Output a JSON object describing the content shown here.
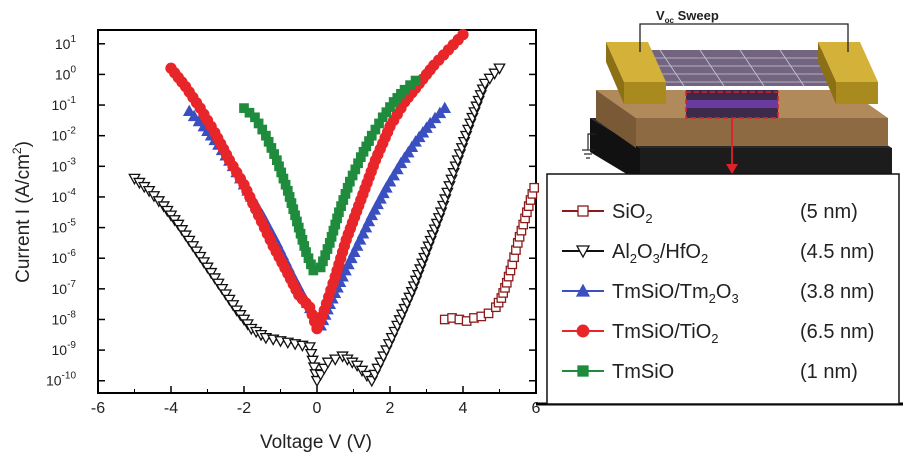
{
  "chart_data": {
    "type": "scatter",
    "xlabel": "Voltage V (V)",
    "ylabel": "Current I (A/cm²)",
    "ylabel_main": "Current I (A/cm",
    "ylabel_sup": "2",
    "ylabel_end": ")",
    "x_ticks": [
      "-6",
      "-4",
      "-2",
      "0",
      "2",
      "4",
      "6"
    ],
    "y_ticks": [
      {
        "base": "10",
        "exp": "1"
      },
      {
        "base": "10",
        "exp": "0"
      },
      {
        "base": "10",
        "exp": "-1"
      },
      {
        "base": "10",
        "exp": "-2"
      },
      {
        "base": "10",
        "exp": "-3"
      },
      {
        "base": "10",
        "exp": "-4"
      },
      {
        "base": "10",
        "exp": "-5"
      },
      {
        "base": "10",
        "exp": "-6"
      },
      {
        "base": "10",
        "exp": "-7"
      },
      {
        "base": "10",
        "exp": "-8"
      },
      {
        "base": "10",
        "exp": "-9"
      },
      {
        "base": "10",
        "exp": "-10"
      }
    ],
    "xlim": [
      -6,
      6
    ],
    "ylim_log10": [
      -10.4,
      1.45
    ],
    "y_scale": "log",
    "grid": false,
    "legend_position": "bottom-right",
    "inset": {
      "label": "V",
      "label_sub": "oc",
      "label_rest": " Sweep",
      "subject": "device cross-section schematic"
    },
    "series": [
      {
        "name": "SiO2",
        "legend_parts": [
          {
            "t": "SiO"
          },
          {
            "t": "2",
            "sub": true
          }
        ],
        "thickness": "(5 nm)",
        "color": "#8b1a1a",
        "marker": "square-open",
        "points": [
          [
            3.5,
            -8
          ],
          [
            3.7,
            -7.95
          ],
          [
            3.9,
            -8
          ],
          [
            4.1,
            -8.05
          ],
          [
            4.3,
            -7.95
          ],
          [
            4.5,
            -7.9
          ],
          [
            4.7,
            -7.8
          ],
          [
            4.9,
            -7.6
          ],
          [
            5.05,
            -7.3
          ],
          [
            5.2,
            -6.8
          ],
          [
            5.35,
            -6.2
          ],
          [
            5.5,
            -5.5
          ],
          [
            5.65,
            -4.9
          ],
          [
            5.8,
            -4.3
          ],
          [
            5.95,
            -3.7
          ]
        ]
      },
      {
        "name": "Al2O3/HfO2",
        "legend_parts": [
          {
            "t": "Al"
          },
          {
            "t": "2",
            "sub": true
          },
          {
            "t": "O"
          },
          {
            "t": "3",
            "sub": true
          },
          {
            "t": "/HfO"
          },
          {
            "t": "2",
            "sub": true
          }
        ],
        "thickness": "(4.5 nm)",
        "color": "#111111",
        "marker": "triangle-down-open",
        "points": [
          [
            -5,
            -3.4
          ],
          [
            -4.6,
            -3.8
          ],
          [
            -4.2,
            -4.3
          ],
          [
            -3.8,
            -4.9
          ],
          [
            -3.4,
            -5.6
          ],
          [
            -3,
            -6.3
          ],
          [
            -2.6,
            -7
          ],
          [
            -2.2,
            -7.7
          ],
          [
            -1.8,
            -8.3
          ],
          [
            -1.4,
            -8.6
          ],
          [
            -1,
            -8.7
          ],
          [
            -0.6,
            -8.8
          ],
          [
            -0.2,
            -8.9
          ],
          [
            0,
            -10
          ],
          [
            0.3,
            -9.4
          ],
          [
            0.7,
            -9.2
          ],
          [
            1.1,
            -9.5
          ],
          [
            1.5,
            -10
          ],
          [
            1.9,
            -9
          ],
          [
            2.2,
            -8.2
          ],
          [
            2.6,
            -7.1
          ],
          [
            3,
            -5.8
          ],
          [
            3.4,
            -4.5
          ],
          [
            3.8,
            -3
          ],
          [
            4.2,
            -1.6
          ],
          [
            4.6,
            -0.3
          ],
          [
            5,
            0.2
          ]
        ]
      },
      {
        "name": "TmSiO/Tm2O3",
        "legend_parts": [
          {
            "t": "TmSiO/Tm"
          },
          {
            "t": "2",
            "sub": true
          },
          {
            "t": "O"
          },
          {
            "t": "3",
            "sub": true
          }
        ],
        "thickness": "(3.8 nm)",
        "color": "#3a4fc0",
        "marker": "triangle-up-filled",
        "points": [
          [
            -3.5,
            -1.2
          ],
          [
            -3.1,
            -1.7
          ],
          [
            -2.7,
            -2.3
          ],
          [
            -2.3,
            -3
          ],
          [
            -1.9,
            -3.8
          ],
          [
            -1.5,
            -4.6
          ],
          [
            -1.1,
            -5.5
          ],
          [
            -0.7,
            -6.5
          ],
          [
            -0.35,
            -7.3
          ],
          [
            -0.1,
            -7.8
          ],
          [
            0.1,
            -8.2
          ],
          [
            0.35,
            -7.5
          ],
          [
            0.7,
            -6.6
          ],
          [
            1.1,
            -5.6
          ],
          [
            1.5,
            -4.6
          ],
          [
            1.9,
            -3.7
          ],
          [
            2.3,
            -2.9
          ],
          [
            2.7,
            -2.2
          ],
          [
            3.1,
            -1.6
          ],
          [
            3.5,
            -1.1
          ]
        ]
      },
      {
        "name": "TmSiO/TiO2",
        "legend_parts": [
          {
            "t": "TmSiO/TiO"
          },
          {
            "t": "2",
            "sub": true
          }
        ],
        "thickness": "(6.5 nm)",
        "color": "#e8262a",
        "marker": "circle-filled",
        "points": [
          [
            -4,
            0.2
          ],
          [
            -3.6,
            -0.4
          ],
          [
            -3.2,
            -1.1
          ],
          [
            -2.8,
            -1.9
          ],
          [
            -2.4,
            -2.8
          ],
          [
            -2,
            -3.6
          ],
          [
            -1.6,
            -4.6
          ],
          [
            -1.2,
            -5.6
          ],
          [
            -0.8,
            -6.5
          ],
          [
            -0.5,
            -7.2
          ],
          [
            -0.2,
            -7.6
          ],
          [
            0,
            -8.3
          ],
          [
            0.2,
            -7.7
          ],
          [
            0.5,
            -6.6
          ],
          [
            0.8,
            -5.4
          ],
          [
            1.2,
            -4.1
          ],
          [
            1.6,
            -2.8
          ],
          [
            2,
            -1.7
          ],
          [
            2.4,
            -0.9
          ],
          [
            2.8,
            -0.3
          ],
          [
            3.2,
            0.3
          ],
          [
            3.6,
            0.8
          ],
          [
            4,
            1.3
          ]
        ]
      },
      {
        "name": "TmSiO",
        "legend_parts": [
          {
            "t": "TmSiO"
          }
        ],
        "thickness": "(1 nm)",
        "color": "#1e8c3c",
        "marker": "square-filled",
        "points": [
          [
            -2,
            -1.1
          ],
          [
            -1.7,
            -1.4
          ],
          [
            -1.4,
            -2
          ],
          [
            -1.1,
            -2.8
          ],
          [
            -0.8,
            -3.8
          ],
          [
            -0.55,
            -4.8
          ],
          [
            -0.3,
            -5.8
          ],
          [
            -0.1,
            -6.4
          ],
          [
            0.1,
            -6.3
          ],
          [
            0.35,
            -5.5
          ],
          [
            0.6,
            -4.5
          ],
          [
            0.9,
            -3.5
          ],
          [
            1.2,
            -2.7
          ],
          [
            1.5,
            -2
          ],
          [
            1.8,
            -1.4
          ],
          [
            2.1,
            -0.9
          ],
          [
            2.4,
            -0.5
          ],
          [
            2.7,
            -0.2
          ]
        ]
      }
    ]
  }
}
